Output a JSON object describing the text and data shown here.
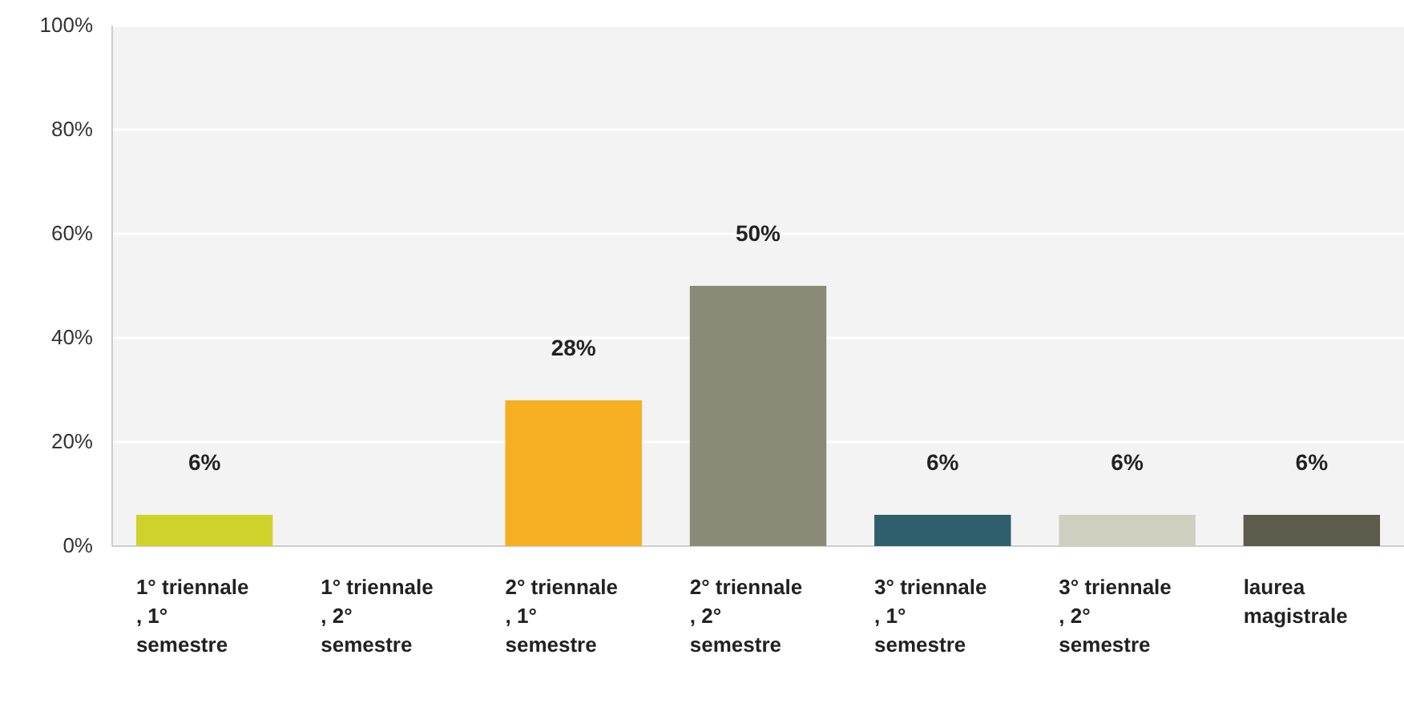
{
  "chart_data": {
    "type": "bar",
    "categories": [
      "1° triennale , 1° semestre",
      "1° triennale , 2° semestre",
      "2° triennale , 1° semestre",
      "2° triennale , 2° semestre",
      "3° triennale , 1° semestre",
      "3° triennale , 2° semestre",
      "laurea magistrale"
    ],
    "values": [
      6,
      0,
      28,
      50,
      6,
      6,
      6
    ],
    "colors": [
      "#cfd22b",
      "#9fb8c8",
      "#f6ae22",
      "#8a8a78",
      "#2f5e6c",
      "#cfcfc0",
      "#5c5b4c"
    ],
    "value_labels": [
      "6%",
      null,
      "28%",
      "50%",
      "6%",
      "6%",
      "6%"
    ],
    "ylim": [
      0,
      100
    ],
    "yticks": [
      {
        "value": 0,
        "label": "0%"
      },
      {
        "value": 20,
        "label": "20%"
      },
      {
        "value": 40,
        "label": "40%"
      },
      {
        "value": 60,
        "label": "60%"
      },
      {
        "value": 80,
        "label": "80%"
      },
      {
        "value": 100,
        "label": "100%"
      }
    ],
    "grid": "y"
  }
}
